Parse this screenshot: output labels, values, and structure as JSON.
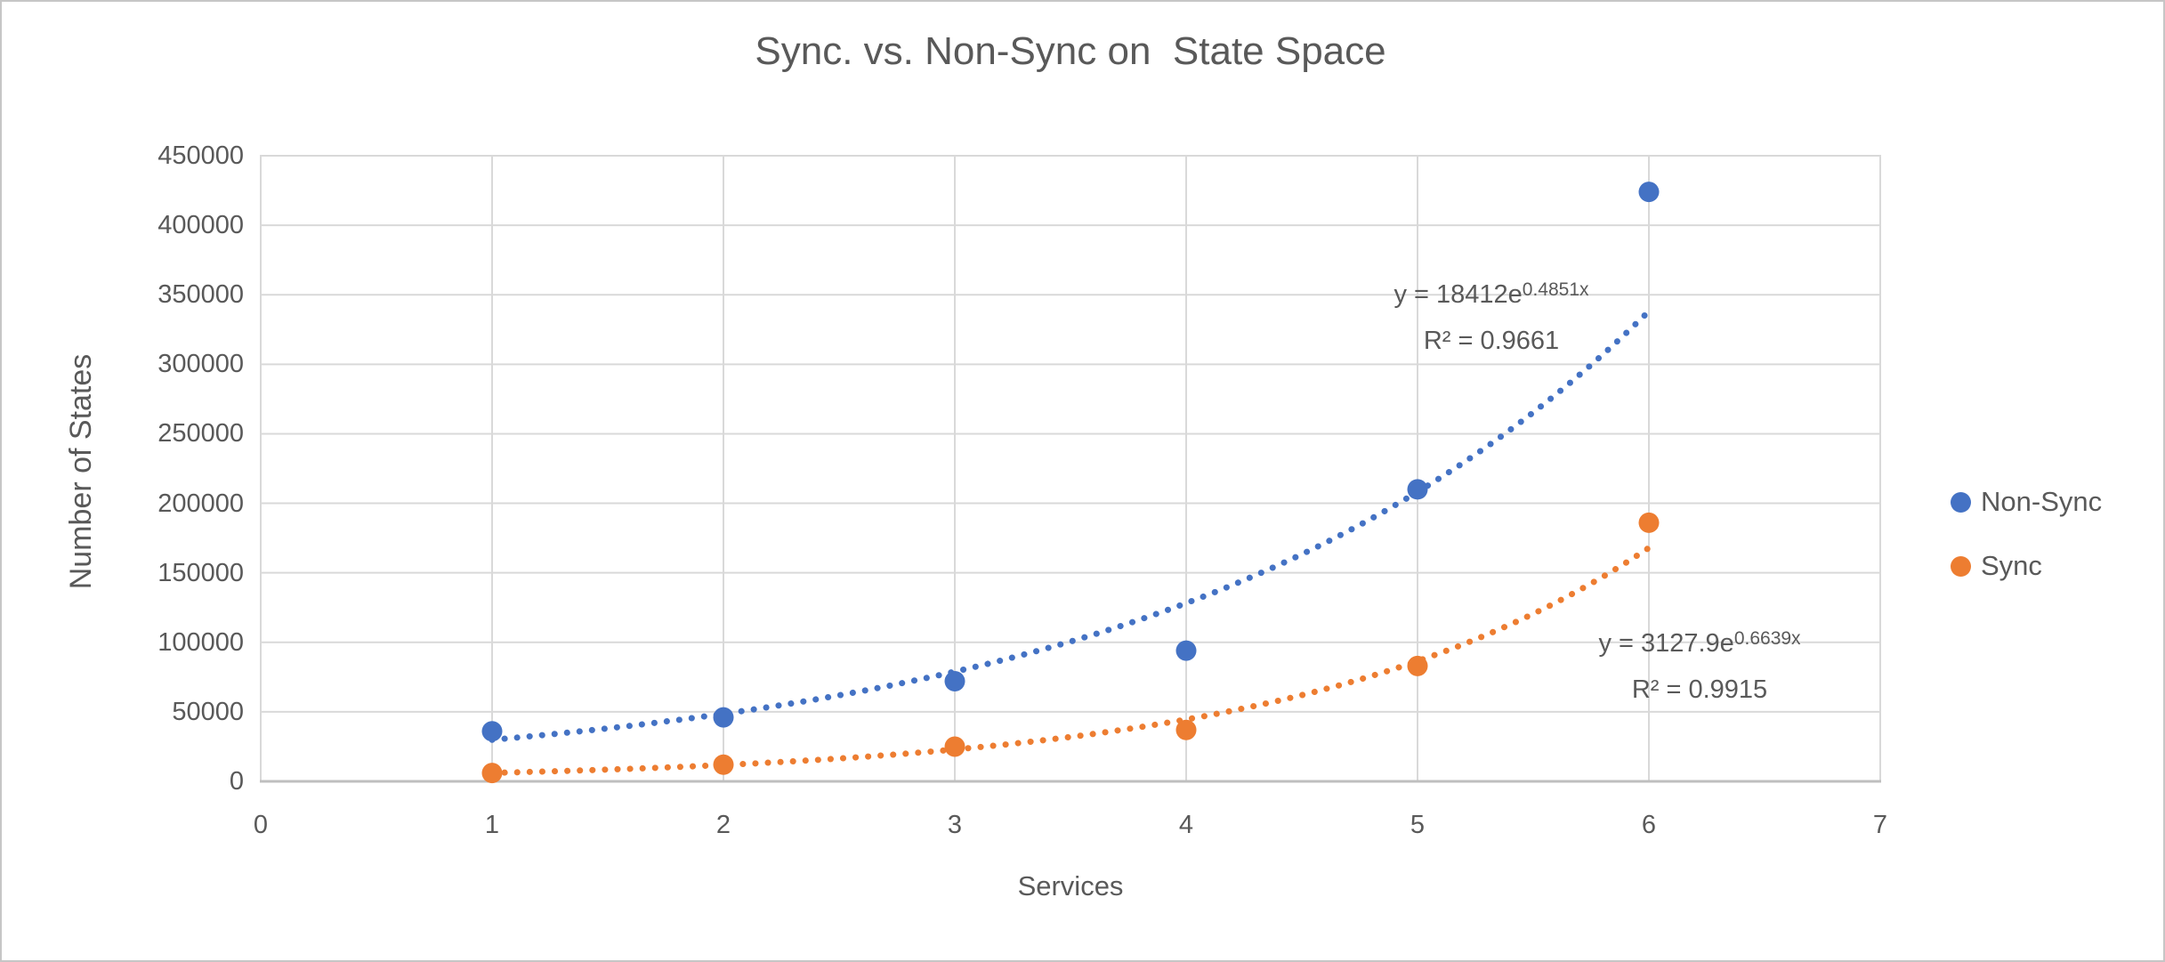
{
  "chart_data": {
    "type": "scatter",
    "title": "Sync. vs. Non-Sync on  State Space",
    "xlabel": "Services",
    "ylabel": "Number of States",
    "xlim": [
      0,
      7
    ],
    "ylim": [
      0,
      450000
    ],
    "x_ticks": [
      0,
      1,
      2,
      3,
      4,
      5,
      6,
      7
    ],
    "y_ticks": [
      0,
      50000,
      100000,
      150000,
      200000,
      250000,
      300000,
      350000,
      400000,
      450000
    ],
    "grid": true,
    "legend_position": "right",
    "x": [
      1,
      2,
      3,
      4,
      5,
      6
    ],
    "series": [
      {
        "name": "Non-Sync",
        "color": "#4472C4",
        "values": [
          36000,
          46000,
          72000,
          94000,
          210000,
          424000
        ],
        "trendline": {
          "type": "exponential",
          "a": 18412,
          "b": 0.4851,
          "x_range": [
            1,
            6
          ],
          "label_base": "y = 18412e",
          "label_exp": "0.4851x",
          "r2_label": "R² = 0.9661"
        }
      },
      {
        "name": "Sync",
        "color": "#ED7D31",
        "values": [
          6000,
          12000,
          25000,
          37000,
          83000,
          186000
        ],
        "trendline": {
          "type": "exponential",
          "a": 3127.9,
          "b": 0.6639,
          "x_range": [
            1,
            6
          ],
          "label_base": "y = 3127.9e",
          "label_exp": "0.6639x",
          "r2_label": "R² = 0.9915"
        }
      }
    ]
  },
  "colors": {
    "text": "#595959",
    "gridline": "#D9D9D9",
    "plot_border": "#D9D9D9",
    "axis_line": "#BFBFBF",
    "frame_border": "#C6C6C6",
    "background": "#FFFFFF"
  }
}
